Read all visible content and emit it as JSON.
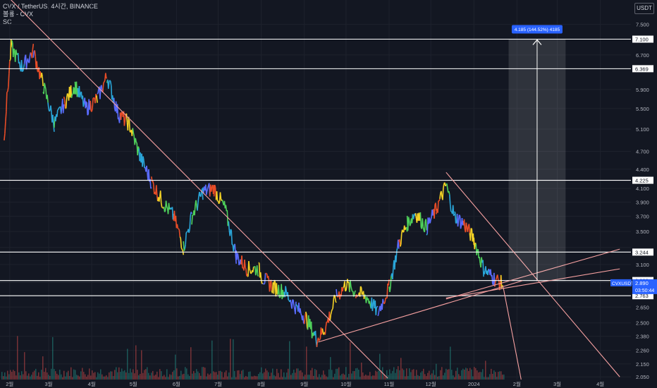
{
  "header": {
    "symbol_line": "CVX / TetherUS, 4시간, BINANCE",
    "indicator_1": "볼륨 - CVX",
    "indicator_2": "SC"
  },
  "price_scale": {
    "unit_label": "USDT"
  },
  "colors": {
    "background": "#131722",
    "grid": "#1e222d",
    "trendline": "#f7a1a1",
    "level_line": "#ffffff",
    "measure_label_bg": "#2962ff",
    "candle_gradient": [
      "#e94d27",
      "#f5d326",
      "#4fd15b",
      "#2aa6d9",
      "#5b6cff"
    ]
  },
  "chart_data": {
    "type": "line",
    "title": "CVX / TetherUS, 4시간, BINANCE",
    "xlabel": "",
    "ylabel": "",
    "scale": "log",
    "ylim": [
      2.03,
      8.2
    ],
    "x_ticks": [
      "2월",
      "3월",
      "4월",
      "5월",
      "6월",
      "7월",
      "8월",
      "9월",
      "10월",
      "11월",
      "12월",
      "2024",
      "2월",
      "3월",
      "4월"
    ],
    "y_ticks": [
      7.5,
      6.7,
      5.9,
      5.5,
      5.1,
      4.7,
      4.4,
      4.1,
      3.9,
      3.7,
      3.5,
      3.3,
      3.1,
      2.9,
      2.65,
      2.5,
      2.38,
      2.26,
      2.15,
      2.05
    ],
    "y_tick_labels": [
      "7.500",
      "6.700",
      "5.900",
      "5.500",
      "5.100",
      "4.700",
      "4.400",
      "4.100",
      "3.900",
      "3.700",
      "3.500",
      "3.300",
      "3.100",
      "2.900",
      "2.650",
      "2.500",
      "2.380",
      "2.260",
      "2.150",
      "2.050"
    ],
    "horizontal_levels": [
      {
        "value": 7.1,
        "label": "7.100"
      },
      {
        "value": 6.369,
        "label": "6.369"
      },
      {
        "value": 4.225,
        "label": "4.225"
      },
      {
        "value": 3.244,
        "label": "3.244"
      },
      {
        "value": 2.922,
        "label": "2.922"
      },
      {
        "value": 2.763,
        "label": "2.763"
      }
    ],
    "current_price": {
      "symbol": "CVXUSDT",
      "value": 2.89,
      "label": "2.890",
      "countdown": "03:50:44"
    },
    "measure": {
      "from": 2.915,
      "to": 7.1,
      "label": "4.185 (144.52%) 4185"
    },
    "price_series": {
      "name": "CVXUSDT",
      "x": [
        "2023-01-28",
        "2023-02-02",
        "2023-02-10",
        "2023-02-18",
        "2023-02-25",
        "2023-03-05",
        "2023-03-12",
        "2023-03-20",
        "2023-03-28",
        "2023-04-05",
        "2023-04-12",
        "2023-04-20",
        "2023-04-28",
        "2023-05-06",
        "2023-05-14",
        "2023-05-22",
        "2023-05-30",
        "2023-06-06",
        "2023-06-12",
        "2023-06-20",
        "2023-06-28",
        "2023-07-06",
        "2023-07-14",
        "2023-07-22",
        "2023-07-30",
        "2023-08-02",
        "2023-08-10",
        "2023-08-18",
        "2023-08-26",
        "2023-09-02",
        "2023-09-10",
        "2023-09-16",
        "2023-09-24",
        "2023-10-01",
        "2023-10-08",
        "2023-10-16",
        "2023-10-24",
        "2023-11-01",
        "2023-11-08",
        "2023-11-14",
        "2023-11-20",
        "2023-11-28",
        "2023-12-05",
        "2023-12-12",
        "2023-12-18",
        "2023-12-25",
        "2024-01-01",
        "2024-01-08",
        "2024-01-15",
        "2024-01-22"
      ],
      "values": [
        5.0,
        6.9,
        6.4,
        6.8,
        6.0,
        5.2,
        5.6,
        6.0,
        5.5,
        5.7,
        6.2,
        5.4,
        5.2,
        4.6,
        4.2,
        3.9,
        3.7,
        3.3,
        3.7,
        4.05,
        4.1,
        3.8,
        3.2,
        3.05,
        3.05,
        2.95,
        2.85,
        2.8,
        2.65,
        2.55,
        2.35,
        2.45,
        2.75,
        2.88,
        2.8,
        2.75,
        2.6,
        2.85,
        3.35,
        3.6,
        3.75,
        3.55,
        3.8,
        4.15,
        3.7,
        3.6,
        3.4,
        3.05,
        2.95,
        2.88
      ]
    },
    "trendlines": [
      {
        "x1": "2023-01-26",
        "y1": 8.5,
        "x2": "2023-10-31",
        "y2": 2.04
      },
      {
        "x1": "2023-09-11",
        "y1": 2.33,
        "x2": "2024-02-05",
        "y2": 2.92
      },
      {
        "x1": "2023-12-12",
        "y1": 2.73,
        "x2": "2024-04-15",
        "y2": 3.28
      },
      {
        "x1": "2023-12-12",
        "y1": 2.74,
        "x2": "2024-04-15",
        "y2": 3.05
      },
      {
        "x1": "2023-12-12",
        "y1": 4.35,
        "x2": "2024-04-15",
        "y2": 2.05
      },
      {
        "x1": "2024-01-22",
        "y1": 2.86,
        "x2": "2024-02-04",
        "y2": 2.03
      }
    ],
    "volume_note": "볼륨 - CVX",
    "grid": true
  }
}
